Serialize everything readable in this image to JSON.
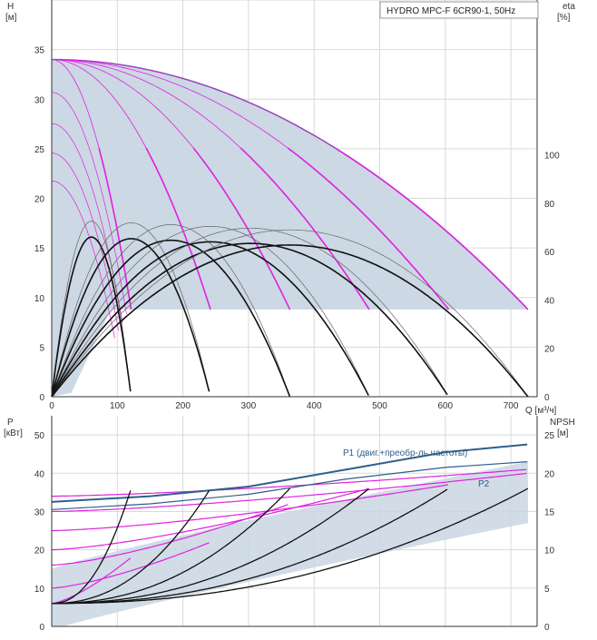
{
  "title_box": "HYDRO MPC-F 6CR90-1, 50Hz",
  "colors": {
    "envelope": "#c9d6e3",
    "envelope_stroke": "#2f5f8a",
    "curve_magenta": "#e020e0",
    "curve_black": "#111111",
    "curve_gray": "#666666",
    "p1_color": "#2f5f8a",
    "grid": "#d9d9d9"
  },
  "chart_data": [
    {
      "type": "line",
      "name": "head-chart",
      "ylabel_left": "H",
      "ylabel_left_unit": "[м]",
      "ylabel_right": "eta",
      "ylabel_right_unit": "[%]",
      "xlabel": "Q [м³/ч]",
      "xlim": [
        0,
        740
      ],
      "ylim": [
        0,
        40
      ],
      "y_ticks": [
        0,
        5,
        10,
        15,
        20,
        25,
        30,
        35
      ],
      "eta_ticks": [
        0,
        20,
        40,
        60,
        80,
        100
      ],
      "eta_scale_max": 164,
      "x_ticks": [
        0,
        100,
        200,
        300,
        400,
        500,
        600,
        700
      ],
      "flow_max_per_pump": 121,
      "n_pumps": 6,
      "head_shutoff": 34,
      "head_min": 8.8,
      "eta_peak_pct": 66,
      "speed_ratios": [
        1.0,
        0.95,
        0.9,
        0.85,
        0.8
      ]
    },
    {
      "type": "line",
      "name": "power-chart",
      "ylabel_left": "P",
      "ylabel_left_unit": "[кВт]",
      "ylabel_right": "NPSH",
      "ylabel_right_unit": "[м]",
      "xlim": [
        0,
        740
      ],
      "ylim": [
        0,
        55
      ],
      "y_ticks": [
        0,
        10,
        20,
        30,
        40,
        50
      ],
      "npsh_ticks": [
        0,
        5,
        10,
        15,
        20,
        25
      ],
      "npsh_scale_max": 27.5,
      "p_levels": [
        6,
        10,
        16,
        20,
        25,
        30,
        34
      ],
      "p_growth": [
        12,
        12,
        16,
        16,
        12,
        10,
        7
      ],
      "npsh_ends": [
        18,
        18,
        18,
        18,
        18,
        18
      ],
      "npsh_start": 3,
      "p1_label": "P1 (двиг.+преобр-ль частоты)",
      "p1_values": [
        {
          "q": 0,
          "p": 32.5
        },
        {
          "q": 150,
          "p": 34
        },
        {
          "q": 300,
          "p": 36.5
        },
        {
          "q": 450,
          "p": 41
        },
        {
          "q": 600,
          "p": 45.5
        },
        {
          "q": 725,
          "p": 47.5
        }
      ],
      "p2_label": "P2",
      "p2_values": [
        {
          "q": 0,
          "p": 30.5
        },
        {
          "q": 150,
          "p": 32
        },
        {
          "q": 300,
          "p": 34.5
        },
        {
          "q": 450,
          "p": 38.5
        },
        {
          "q": 600,
          "p": 41.5
        },
        {
          "q": 725,
          "p": 43
        }
      ]
    }
  ]
}
